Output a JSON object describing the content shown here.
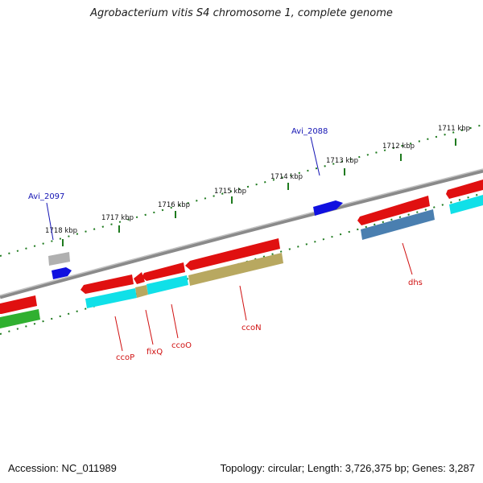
{
  "title": "Agrobacterium vitis S4 chromosome 1, complete genome",
  "footer": {
    "accession": "Accession: NC_011989",
    "summary": "Topology: circular; Length: 3,726,375 bp; Genes: 3,287"
  },
  "scale_labels": [
    "1718 kbp",
    "1717 kbp",
    "1716 kbp",
    "1715 kbp",
    "1714 kbp",
    "1713 kbp",
    "1712 kbp",
    "1711 kbp"
  ],
  "gene_labels": {
    "avi_2097": "Avi_2097",
    "avi_2088": "Avi_2088",
    "ccoP": "ccoP",
    "fixQ": "fixQ",
    "ccoO": "ccoO",
    "ccoN": "ccoN",
    "dhs": "dhs"
  },
  "colors": {
    "backbone": "#8a8a8a",
    "tick": "#1e7a1e",
    "gene_forward": "#e01010",
    "gene_blue": "#1010e0",
    "cog_cyan": "#10e0e8",
    "cog_khaki": "#b8a860",
    "cog_steel": "#4a7fb0",
    "cog_green": "#30b030",
    "cog_gray": "#b0b0b0",
    "label_red": "#d01010",
    "label_blue": "#1414b4"
  }
}
